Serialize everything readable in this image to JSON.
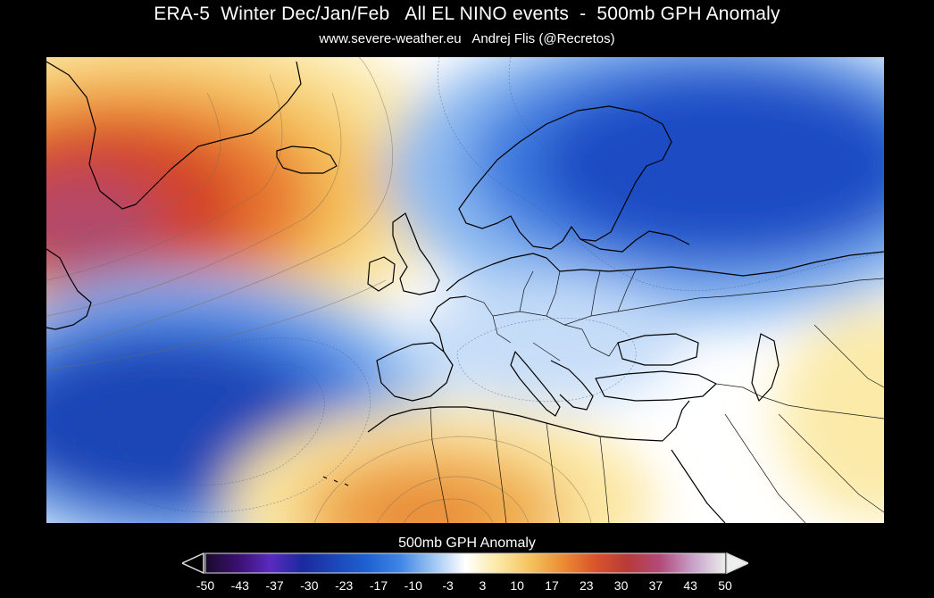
{
  "title": "ERA-5  Winter Dec/Jan/Feb   All EL NINO events  -  500mb GPH Anomaly",
  "subtitle": "www.severe-weather.eu   Andrej Flis (@Recretos)",
  "colorbar": {
    "label": "500mb GPH Anomaly",
    "ticks": [
      "-50",
      "-43",
      "-37",
      "-30",
      "-23",
      "-17",
      "-10",
      "-3",
      "3",
      "10",
      "17",
      "23",
      "30",
      "37",
      "43",
      "50"
    ],
    "range": [
      -50,
      50
    ],
    "colors": [
      "#1a0a2a",
      "#3a1070",
      "#5a2bc0",
      "#1a2a9e",
      "#1c46b8",
      "#1f62d3",
      "#3f86e6",
      "#9cc4f2",
      "#ffffff",
      "#fbe9a6",
      "#f5c35e",
      "#ec8c33",
      "#d9542a",
      "#b83a3a",
      "#b24a7a",
      "#c7a0c8",
      "#ececec"
    ]
  },
  "map": {
    "region": "North Atlantic and Europe",
    "positive_color": "#e05a2a",
    "negative_color": "#1747b8",
    "neutral_color": "#ffffff"
  }
}
